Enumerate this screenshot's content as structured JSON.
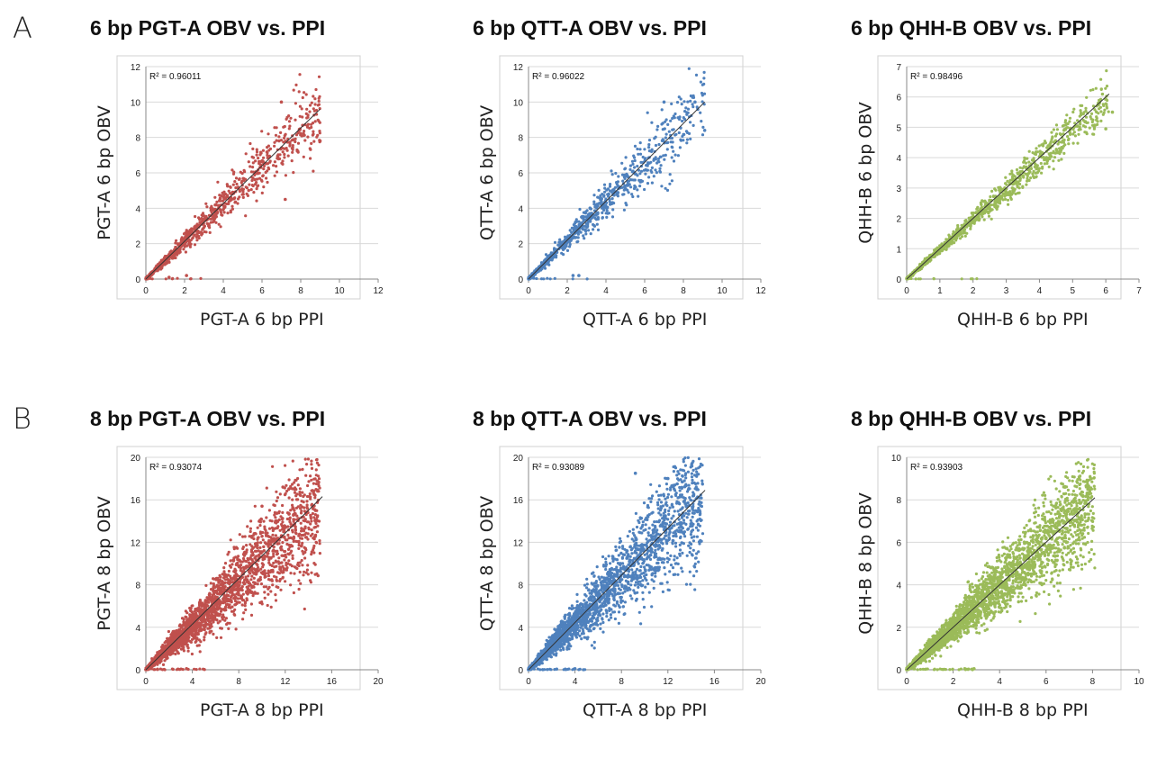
{
  "row_labels": [
    "A",
    "B"
  ],
  "chart_data": [
    {
      "type": "scatter",
      "title": "6 bp PGT-A OBV vs. PPI",
      "xlabel": "PGT-A 6 bp PPI",
      "ylabel": "PGT-A 6 bp OBV",
      "r2_label": "R² = 0.96011",
      "xlim": [
        0,
        12
      ],
      "ylim": [
        0,
        12
      ],
      "xticks": [
        0,
        2,
        4,
        6,
        8,
        10,
        12
      ],
      "yticks": [
        0,
        2,
        4,
        6,
        8,
        10,
        12
      ],
      "color": "#c0504d",
      "trendline": {
        "x": [
          0,
          9
        ],
        "y": [
          0,
          9.6
        ]
      },
      "points": {
        "n": 900,
        "slope": 1.06,
        "xmax": 9,
        "spread": 0.12,
        "seed": 11,
        "outliers": [
          [
            7,
            10
          ],
          [
            9,
            7.8
          ],
          [
            7.2,
            4.5
          ],
          [
            1.2,
            0.1
          ],
          [
            2.1,
            0.2
          ]
        ]
      }
    },
    {
      "type": "scatter",
      "title": "6 bp QTT-A OBV vs. PPI",
      "xlabel": "QTT-A 6 bp PPI",
      "ylabel": "QTT-A 6 bp OBV",
      "r2_label": "R² = 0.96022",
      "xlim": [
        0,
        12
      ],
      "ylim": [
        0,
        12
      ],
      "xticks": [
        0,
        2,
        4,
        6,
        8,
        10,
        12
      ],
      "yticks": [
        0,
        2,
        4,
        6,
        8,
        10,
        12
      ],
      "color": "#4f81bd",
      "trendline": {
        "x": [
          0,
          9.1
        ],
        "y": [
          0,
          10
        ]
      },
      "points": {
        "n": 900,
        "slope": 1.09,
        "xmax": 9.1,
        "spread": 0.12,
        "seed": 23,
        "outliers": [
          [
            7,
            10
          ],
          [
            8.6,
            10
          ],
          [
            9.1,
            8.4
          ],
          [
            2.3,
            0.2
          ],
          [
            2.6,
            0.2
          ]
        ]
      }
    },
    {
      "type": "scatter",
      "title": "6 bp QHH-B OBV vs. PPI",
      "xlabel": "QHH-B 6 bp PPI",
      "ylabel": "QHH-B  6 bp OBV",
      "r2_label": "R² = 0.98496",
      "xlim": [
        0,
        7
      ],
      "ylim": [
        0,
        7
      ],
      "xticks": [
        0,
        1,
        2,
        3,
        4,
        5,
        6,
        7
      ],
      "yticks": [
        0,
        1,
        2,
        3,
        4,
        5,
        6,
        7
      ],
      "color": "#9bbb59",
      "trendline": {
        "x": [
          0,
          6.1
        ],
        "y": [
          0,
          6.1
        ]
      },
      "points": {
        "n": 1100,
        "slope": 0.98,
        "xmax": 6.1,
        "spread": 0.07,
        "seed": 37,
        "outliers": [
          [
            6.2,
            5.5
          ],
          [
            6,
            4.95
          ]
        ]
      }
    },
    {
      "type": "scatter",
      "title": "8 bp PGT-A OBV vs. PPI",
      "xlabel": "PGT-A 8 bp PPI",
      "ylabel": "PGT-A 8 bp OBV",
      "r2_label": "R² = 0.93074",
      "xlim": [
        0,
        20
      ],
      "ylim": [
        0,
        20
      ],
      "xticks": [
        0,
        4,
        8,
        12,
        16,
        20
      ],
      "yticks": [
        0,
        4,
        8,
        12,
        16,
        20
      ],
      "color": "#c0504d",
      "trendline": {
        "x": [
          0,
          15.2
        ],
        "y": [
          0,
          16.3
        ]
      },
      "points": {
        "n": 2600,
        "slope": 1.05,
        "xmax": 15,
        "spread": 0.2,
        "seed": 51,
        "outliers": [
          [
            11.8,
            17.2
          ],
          [
            14.5,
            16.5
          ],
          [
            10,
            15.4
          ],
          [
            3.5,
            0.1
          ]
        ]
      }
    },
    {
      "type": "scatter",
      "title": "8 bp QTT-A OBV vs. PPI",
      "xlabel": "QTT-A 8 bp PPI",
      "ylabel": "QTT-A 8 bp OBV",
      "r2_label": "R² = 0.93089",
      "xlim": [
        0,
        20
      ],
      "ylim": [
        0,
        20
      ],
      "xticks": [
        0,
        4,
        8,
        12,
        16,
        20
      ],
      "yticks": [
        0,
        4,
        8,
        12,
        16,
        20
      ],
      "color": "#4f81bd",
      "trendline": {
        "x": [
          0,
          15.2
        ],
        "y": [
          0,
          16.9
        ]
      },
      "points": {
        "n": 2600,
        "slope": 1.1,
        "xmax": 15,
        "spread": 0.2,
        "seed": 67,
        "outliers": [
          [
            9.2,
            18.5
          ],
          [
            12,
            18
          ],
          [
            12.8,
            17.5
          ],
          [
            4,
            0.1
          ]
        ]
      }
    },
    {
      "type": "scatter",
      "title": "8 bp QHH-B OBV vs. PPI",
      "xlabel": "QHH-B 8 bp PPI",
      "ylabel": "QHH-B  8 bp OBV",
      "r2_label": "R² = 0.93903",
      "xlim": [
        0,
        10
      ],
      "ylim": [
        0,
        10
      ],
      "xticks": [
        0,
        2,
        4,
        6,
        8,
        10
      ],
      "yticks": [
        0,
        2,
        4,
        6,
        8,
        10
      ],
      "color": "#9bbb59",
      "trendline": {
        "x": [
          0,
          8.1
        ],
        "y": [
          0,
          8.1
        ]
      },
      "points": {
        "n": 3200,
        "slope": 1.0,
        "xmax": 8.1,
        "spread": 0.17,
        "seed": 83,
        "outliers": [
          [
            6.8,
            8.6
          ],
          [
            7.8,
            8.0
          ],
          [
            2.5,
            0.05
          ],
          [
            2.9,
            0.05
          ]
        ]
      }
    }
  ]
}
